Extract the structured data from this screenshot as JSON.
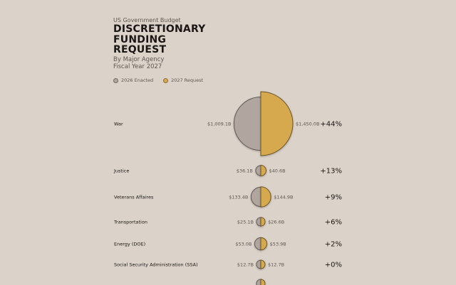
{
  "header": {
    "kicker": "US Government Budget",
    "title_lines": [
      "DISCRETIONARY",
      "FUNDING",
      "REQUEST"
    ],
    "subtitle": "By Major Agency",
    "fiscal_year": "Fiscal Year 2027"
  },
  "legend": {
    "enacted_label": "2026 Enacted",
    "request_label": "2027 Request"
  },
  "colors": {
    "enacted": "#b0a69f",
    "request": "#d6a950",
    "background": "#dbd2ca"
  },
  "chart_data": {
    "type": "semicircle-comparison",
    "series": [
      {
        "name": "2026 Enacted"
      },
      {
        "name": "2027 Request"
      }
    ],
    "rows": [
      {
        "agency": "War",
        "enacted": 1009.1,
        "request": 1450.0,
        "enacted_label": "$1,009.1B",
        "request_label": "$1,450.0B",
        "change": "+44%"
      },
      {
        "agency": "Justice",
        "enacted": 36.1,
        "request": 40.6,
        "enacted_label": "$36.1B",
        "request_label": "$40.6B",
        "change": "+13%"
      },
      {
        "agency": "Veterans Affaires",
        "enacted": 133.4,
        "request": 144.9,
        "enacted_label": "$133.4B",
        "request_label": "$144.9B",
        "change": "+9%"
      },
      {
        "agency": "Transportation",
        "enacted": 25.1,
        "request": 26.6,
        "enacted_label": "$25.1B",
        "request_label": "$26.6B",
        "change": "+6%"
      },
      {
        "agency": "Energy (DOE)",
        "enacted": 53.0,
        "request": 53.9,
        "enacted_label": "$53.0B",
        "request_label": "$53.9B",
        "change": "+2%"
      },
      {
        "agency": "Social Security Administration (SSA)",
        "enacted": 12.7,
        "request": 12.7,
        "enacted_label": "$12.7B",
        "request_label": "$12.7B",
        "change": "+0%"
      },
      {
        "agency": "",
        "enacted": 20.0,
        "request": 20.0,
        "enacted_label": "",
        "request_label": "",
        "change": ""
      }
    ]
  }
}
